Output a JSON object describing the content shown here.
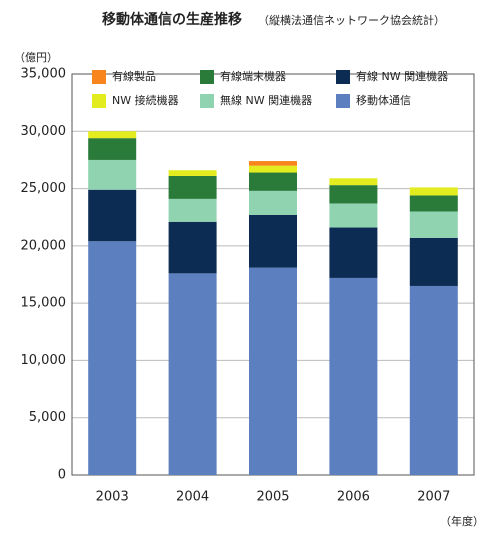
{
  "chart_data": {
    "type": "stacked-bar",
    "title": "移動体通信の生産推移",
    "subtitle": "（縦横法通信ネットワーク協会統計）",
    "y_label": "（億円）",
    "x_label": "（年度）",
    "categories": [
      "2003",
      "2004",
      "2005",
      "2006",
      "2007"
    ],
    "series": [
      {
        "name": "有線製品",
        "color": "#f7841d",
        "values": [
          0,
          0,
          400,
          0,
          0
        ]
      },
      {
        "name": "有線端末機器",
        "color": "#2a7a3a",
        "values": [
          1900,
          2000,
          1600,
          1600,
          1400
        ]
      },
      {
        "name": "有線 NW 関連機器",
        "color": "#0d2c54",
        "values": [
          4500,
          4500,
          4600,
          4400,
          4200
        ]
      },
      {
        "name": "NW 接続機器",
        "color": "#e3ec1e",
        "values": [
          600,
          500,
          600,
          600,
          700
        ]
      },
      {
        "name": "無線 NW 関連機器",
        "color": "#8fd3b0",
        "values": [
          2600,
          2000,
          2100,
          2100,
          2300
        ]
      },
      {
        "name": "移動体通信",
        "color": "#5b7fbf",
        "values": [
          20400,
          17600,
          18100,
          17200,
          16500
        ]
      }
    ],
    "ylim": [
      0,
      35000
    ],
    "yticks": [
      0,
      {
        "value": 5000,
        "label": "5,000"
      },
      {
        "value": 10000,
        "label": "10,000"
      },
      {
        "value": 15000,
        "label": "15,000"
      },
      {
        "value": 20000,
        "label": "20,000"
      },
      {
        "value": 25000,
        "label": "25,000"
      },
      {
        "value": 30000,
        "label": "30,000"
      },
      {
        "value": 35000,
        "label": "35,000"
      }
    ],
    "grid": true
  }
}
